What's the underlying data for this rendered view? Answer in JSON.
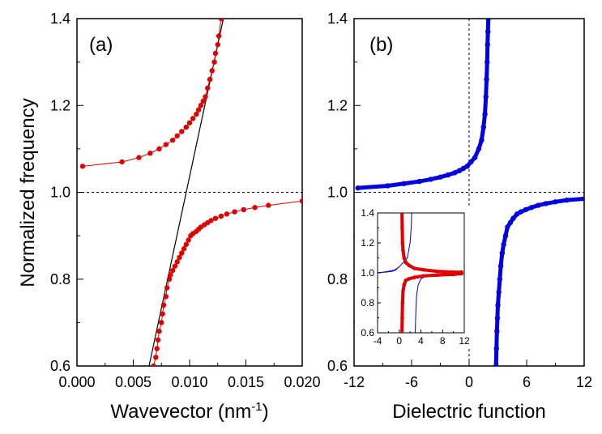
{
  "chart_data": [
    {
      "type": "line",
      "panel_label": "(a)",
      "xlabel": "Wavevector (nm",
      "xlabel_sup": "-1",
      "xlabel_suffix": ")",
      "ylabel": "Normalized frequency",
      "xlim": [
        0.0,
        0.02
      ],
      "ylim": [
        0.6,
        1.4
      ],
      "x_ticks": [
        "0.000",
        "0.005",
        "0.010",
        "0.015",
        "0.020"
      ],
      "y_ticks": [
        "0.6",
        "0.8",
        "1.0",
        "1.2",
        "1.4"
      ],
      "reference_line_y": 1.0,
      "colors": {
        "series": "#e00000",
        "light_line": "#000000"
      },
      "series": [
        {
          "x": [
            0.0005,
            0.004,
            0.0055,
            0.0065,
            0.0073,
            0.0079,
            0.0085,
            0.0089,
            0.0093,
            0.0097,
            0.01,
            0.0103,
            0.0106,
            0.0108,
            0.011,
            0.0112,
            0.0114,
            0.0116,
            0.0118,
            0.012,
            0.0122,
            0.0123,
            0.0125,
            0.0126,
            0.0128
          ],
          "y": [
            1.06,
            1.07,
            1.08,
            1.09,
            1.1,
            1.11,
            1.12,
            1.13,
            1.14,
            1.15,
            1.16,
            1.17,
            1.18,
            1.19,
            1.2,
            1.21,
            1.22,
            1.24,
            1.26,
            1.28,
            1.3,
            1.32,
            1.34,
            1.36,
            1.4
          ]
        },
        {
          "x": [
            0.0068,
            0.007,
            0.0071,
            0.0072,
            0.0073,
            0.0075,
            0.0076,
            0.0077,
            0.0079,
            0.008,
            0.0082,
            0.0083,
            0.0085,
            0.0087,
            0.0089,
            0.0091,
            0.0093,
            0.0095,
            0.0097,
            0.0099,
            0.0101,
            0.0103,
            0.0106,
            0.0108,
            0.011,
            0.0113,
            0.0116,
            0.0119,
            0.0123,
            0.0128,
            0.0133,
            0.014,
            0.0148,
            0.0158,
            0.017,
            0.02
          ],
          "y": [
            0.6,
            0.62,
            0.64,
            0.66,
            0.68,
            0.7,
            0.72,
            0.74,
            0.76,
            0.78,
            0.8,
            0.81,
            0.82,
            0.83,
            0.84,
            0.85,
            0.86,
            0.87,
            0.88,
            0.89,
            0.9,
            0.905,
            0.91,
            0.915,
            0.92,
            0.925,
            0.93,
            0.935,
            0.94,
            0.945,
            0.95,
            0.955,
            0.96,
            0.965,
            0.97,
            0.98
          ]
        }
      ],
      "light_line": {
        "x": [
          0.0064,
          0.013
        ],
        "y": [
          0.6,
          1.4
        ]
      }
    },
    {
      "type": "line",
      "panel_label": "(b)",
      "xlabel": "Dielectric function",
      "xlim": [
        -12,
        12
      ],
      "ylim": [
        0.6,
        1.4
      ],
      "x_ticks": [
        "-12",
        "-6",
        "0",
        "6",
        "12"
      ],
      "y_ticks": [
        "0.6",
        "0.8",
        "1.0",
        "1.2",
        "1.4"
      ],
      "reference_line_x": 0,
      "reference_line_y": 1.0,
      "colors": {
        "series": "#0000e0"
      },
      "series": [
        {
          "x": [
            -11.6,
            -8.5,
            -6.8,
            -5.2,
            -4.0,
            -3.0,
            -2.2,
            -1.5,
            -1.0,
            -0.6,
            -0.2,
            0.2,
            0.6,
            1.0,
            1.3,
            1.5,
            1.65,
            1.75,
            1.82,
            1.88,
            1.92,
            1.96,
            2.0
          ],
          "y": [
            1.01,
            1.015,
            1.02,
            1.025,
            1.03,
            1.035,
            1.04,
            1.045,
            1.05,
            1.055,
            1.06,
            1.07,
            1.08,
            1.1,
            1.12,
            1.15,
            1.18,
            1.22,
            1.26,
            1.3,
            1.34,
            1.37,
            1.4
          ]
        },
        {
          "x": [
            12.0,
            10.2,
            9.0,
            8.0,
            7.2,
            6.5,
            5.9,
            5.4,
            5.0,
            4.6,
            4.3,
            4.0,
            3.8,
            3.6,
            3.45,
            3.3,
            3.2,
            3.1,
            3.0,
            2.95,
            2.9,
            2.85,
            2.8
          ],
          "y": [
            0.985,
            0.982,
            0.978,
            0.974,
            0.97,
            0.965,
            0.96,
            0.955,
            0.95,
            0.94,
            0.93,
            0.92,
            0.9,
            0.88,
            0.86,
            0.83,
            0.8,
            0.77,
            0.74,
            0.71,
            0.68,
            0.64,
            0.6
          ]
        }
      ],
      "inset": {
        "xlim": [
          -4,
          12
        ],
        "ylim": [
          0.6,
          1.4
        ],
        "x_ticks": [
          "-4",
          "0",
          "4",
          "8",
          "12"
        ],
        "y_ticks": [
          "0.6",
          "0.8",
          "1.0",
          "1.2",
          "1.4"
        ],
        "colors": {
          "thick": "#e00000",
          "thin": "#0000e0"
        },
        "series": [
          {
            "x": [
              0.5,
              0.55,
              0.6,
              0.7,
              0.9,
              1.2,
              1.8,
              2.8,
              4.5,
              7.0,
              10.0,
              11.5
            ],
            "y": [
              1.4,
              1.3,
              1.2,
              1.15,
              1.1,
              1.07,
              1.05,
              1.03,
              1.02,
              1.01,
              1.005,
              1.005
            ]
          },
          {
            "x": [
              11.5,
              10.0,
              7.0,
              4.5,
              2.8,
              1.8,
              1.2,
              0.9,
              0.7,
              0.6,
              0.55,
              0.5
            ],
            "y": [
              0.995,
              0.99,
              0.985,
              0.98,
              0.97,
              0.96,
              0.95,
              0.92,
              0.88,
              0.8,
              0.7,
              0.6
            ]
          }
        ],
        "lines": [
          {
            "x": [
              -3.8,
              -2,
              -0.8,
              0,
              0.5,
              1.5,
              2.0,
              2.2,
              2.3
            ],
            "y": [
              1.0,
              1.01,
              1.02,
              1.04,
              1.06,
              1.1,
              1.2,
              1.3,
              1.4
            ]
          },
          {
            "x": [
              11.5,
              8,
              5,
              4,
              3.5,
              3.2,
              3.05,
              2.95
            ],
            "y": [
              0.995,
              0.99,
              0.98,
              0.96,
              0.92,
              0.85,
              0.72,
              0.6
            ]
          },
          {
            "x": [
              -4,
              -2.5,
              -1.3,
              -0.6,
              -0.1
            ],
            "y": [
              1.002,
              1.005,
              1.01,
              1.02,
              1.04
            ]
          }
        ]
      }
    }
  ]
}
